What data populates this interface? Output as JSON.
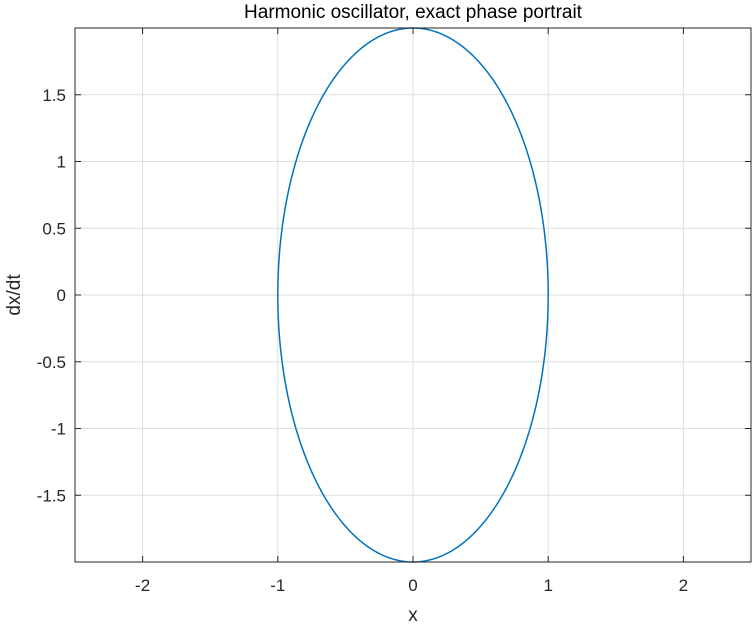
{
  "chart_data": {
    "type": "line",
    "title": "Harmonic oscillator, exact phase portrait",
    "xlabel": "x",
    "ylabel": "dx/dt",
    "xlim": [
      -2.5,
      2.5
    ],
    "ylim": [
      -2,
      2
    ],
    "xticks": [
      -2,
      -1,
      0,
      1,
      2
    ],
    "xtick_labels": [
      "-2",
      "-1",
      "0",
      "1",
      "2"
    ],
    "yticks": [
      -1.5,
      -1,
      -0.5,
      0,
      0.5,
      1,
      1.5
    ],
    "ytick_labels": [
      "-1.5",
      "-1",
      "-0.5",
      "0",
      "0.5",
      "1",
      "1.5"
    ],
    "grid": true,
    "series": [
      {
        "curve": "ellipse",
        "equation": "x = cos(t), dx/dt = -2 sin(t)",
        "x_amplitude": 1,
        "y_amplitude": 2,
        "color": "#0072BD",
        "x": [
          1,
          0.866,
          0.5,
          0,
          -0.5,
          -0.866,
          -1,
          -0.866,
          -0.5,
          0,
          0.5,
          0.866,
          1
        ],
        "y": [
          0,
          -1,
          -1.732,
          -2,
          -1.732,
          -1,
          0,
          1,
          1.732,
          2,
          1.732,
          1,
          0
        ]
      }
    ]
  }
}
